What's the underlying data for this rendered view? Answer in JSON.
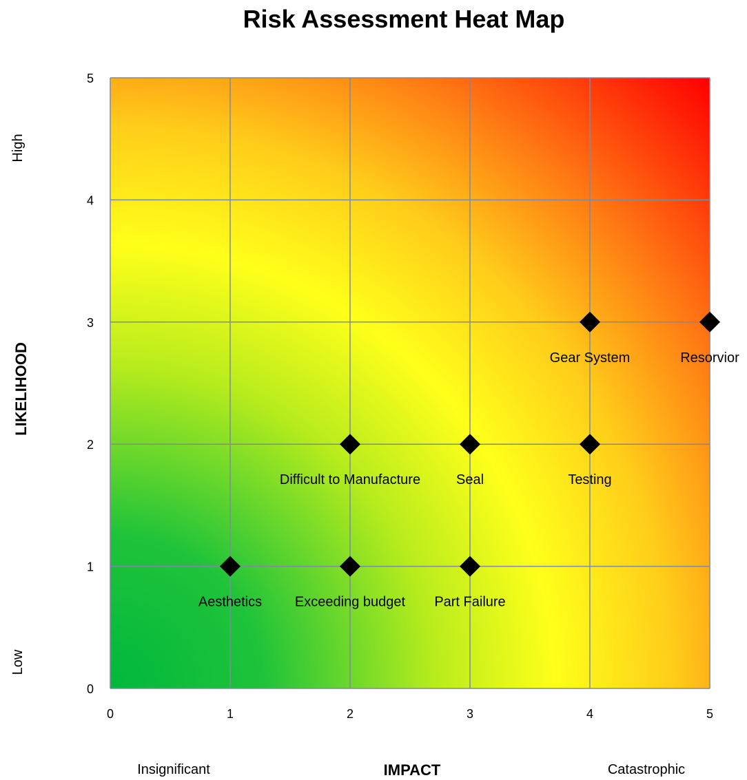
{
  "chart_data": {
    "type": "scatter",
    "title": "Risk Assessment Heat Map",
    "xlabel": "IMPACT",
    "ylabel": "LIKELIHOOD",
    "xlim": [
      0,
      5
    ],
    "ylim": [
      0,
      5
    ],
    "x_ticks": [
      "0",
      "1",
      "2",
      "3",
      "4",
      "5"
    ],
    "y_ticks": [
      "0",
      "1",
      "2",
      "3",
      "4",
      "5"
    ],
    "x_low_label": "Insignificant",
    "x_high_label": "Catastrophic",
    "y_low_label": "Low",
    "y_high_label": "High",
    "grid": true,
    "background": "heat gradient green (low) to yellow to red (high)",
    "colors": {
      "low": "#00b83c",
      "mid": "#ffff1a",
      "high": "#ff0000",
      "marker": "#000000"
    },
    "points": [
      {
        "label": "Aesthetics",
        "x": 1,
        "y": 1
      },
      {
        "label": "Exceeding budget",
        "x": 2,
        "y": 1
      },
      {
        "label": "Part Failure",
        "x": 3,
        "y": 1
      },
      {
        "label": "Difficult to Manufacture",
        "x": 2,
        "y": 2
      },
      {
        "label": "Seal",
        "x": 3,
        "y": 2
      },
      {
        "label": "Testing",
        "x": 4,
        "y": 2
      },
      {
        "label": "Gear System",
        "x": 4,
        "y": 3
      },
      {
        "label": "Resorvior",
        "x": 5,
        "y": 3
      }
    ]
  }
}
